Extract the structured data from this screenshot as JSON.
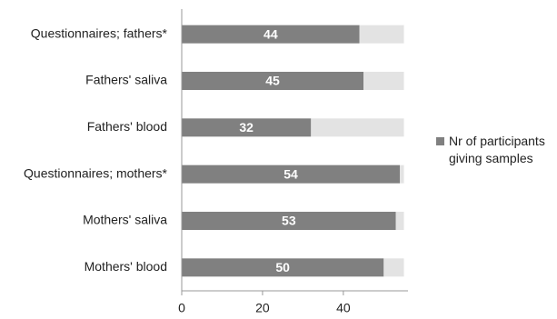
{
  "chart_data": {
    "type": "stacked-barh",
    "categories": [
      "Questionnaires; fathers*",
      "Fathers' saliva",
      "Fathers' blood",
      "Questionnaires; mothers*",
      "Mothers' saliva",
      "Mothers' blood"
    ],
    "series": [
      {
        "name": "Nr of participants giving samples",
        "color": "#808080",
        "values": [
          44,
          45,
          32,
          54,
          53,
          50
        ]
      },
      {
        "color": "#e3e3e3",
        "values": [
          11,
          10,
          23,
          1,
          2,
          5
        ]
      }
    ],
    "xlim": [
      0,
      56
    ],
    "xticks": [
      0,
      20,
      40
    ],
    "legend": "right"
  }
}
